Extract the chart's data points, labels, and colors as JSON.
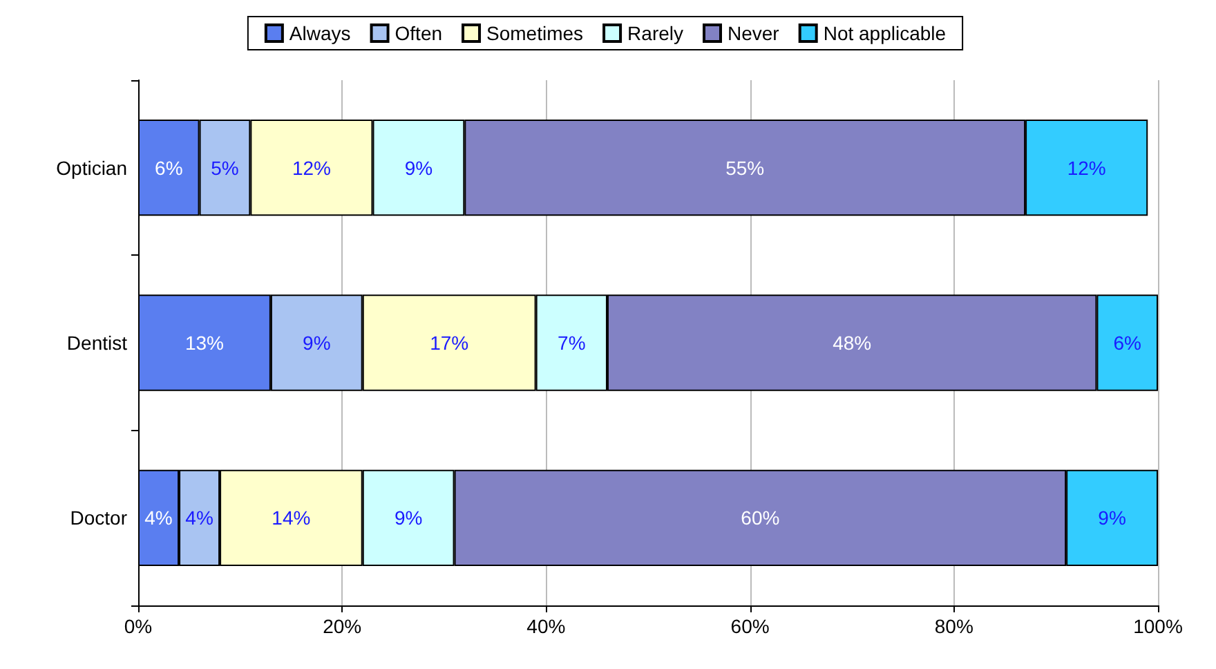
{
  "chart_data": {
    "type": "bar",
    "orientation": "horizontal",
    "stacked": true,
    "grid": "x",
    "legend": "top",
    "categories": [
      "Optician",
      "Dentist",
      "Doctor"
    ],
    "series": [
      {
        "name": "Always",
        "color": "#5a7ef0",
        "values": [
          6,
          13,
          4
        ],
        "value_labels": [
          "6%",
          "13%",
          "4%"
        ]
      },
      {
        "name": "Often",
        "color": "#a9c4f2",
        "values": [
          5,
          9,
          4
        ],
        "value_labels": [
          "5%",
          "9%",
          "4%"
        ]
      },
      {
        "name": "Sometimes",
        "color": "#ffffcc",
        "values": [
          12,
          17,
          14
        ],
        "value_labels": [
          "12%",
          "17%",
          "14%"
        ]
      },
      {
        "name": "Rarely",
        "color": "#ccffff",
        "values": [
          9,
          7,
          9
        ],
        "value_labels": [
          "9%",
          "7%",
          "9%"
        ]
      },
      {
        "name": "Never",
        "color": "#8282c4",
        "values": [
          55,
          48,
          60
        ],
        "value_labels": [
          "55%",
          "48%",
          "60%"
        ]
      },
      {
        "name": "Not applicable",
        "color": "#33ccff",
        "values": [
          12,
          6,
          9
        ],
        "value_labels": [
          "12%",
          "6%",
          "9%"
        ]
      }
    ],
    "xlim": [
      0,
      100
    ],
    "xticks": [
      {
        "value": 0,
        "label": "0%"
      },
      {
        "value": 20,
        "label": "20%"
      },
      {
        "value": 40,
        "label": "40%"
      },
      {
        "value": 60,
        "label": "60%"
      },
      {
        "value": 80,
        "label": "80%"
      },
      {
        "value": 100,
        "label": "100%"
      }
    ]
  }
}
